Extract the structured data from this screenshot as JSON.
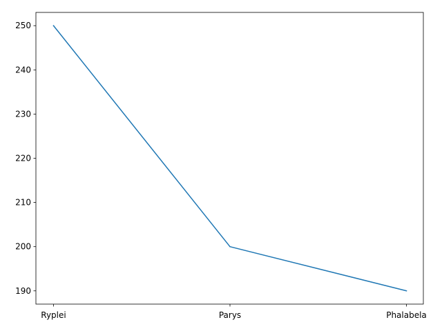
{
  "chart_data": {
    "type": "line",
    "categories": [
      "Ryplei",
      "Parys",
      "Phalabela"
    ],
    "series": [
      {
        "values": [
          250,
          200,
          190
        ]
      }
    ],
    "title": "",
    "xlabel": "",
    "ylabel": "",
    "ylim": [
      187.0,
      253.0
    ],
    "yticks": [
      190,
      200,
      210,
      220,
      230,
      240,
      250
    ],
    "grid": false,
    "legend": "none",
    "line_color": "#1f77b4"
  }
}
